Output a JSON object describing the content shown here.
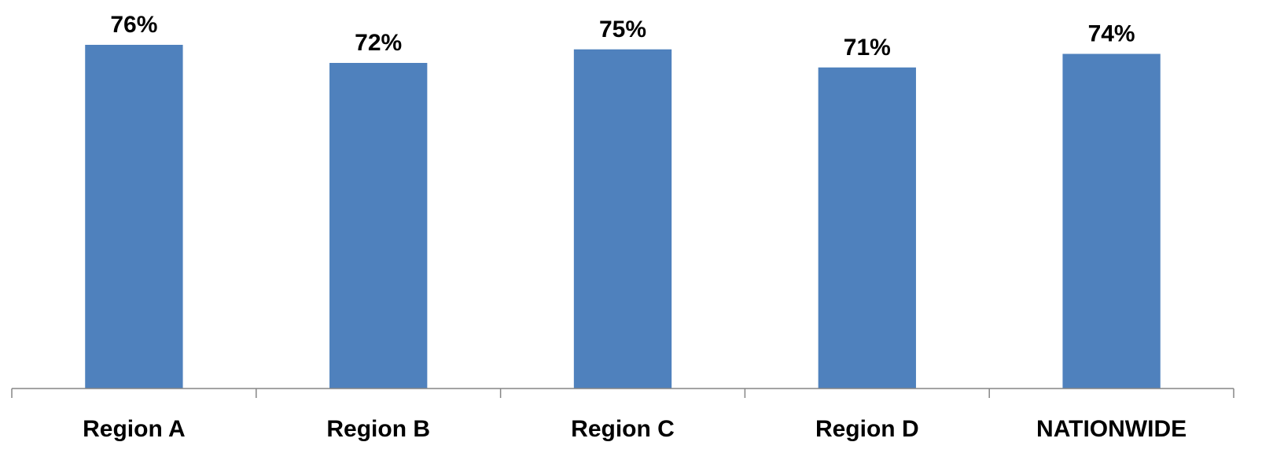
{
  "chart_data": {
    "type": "bar",
    "categories": [
      "Region A",
      "Region B",
      "Region C",
      "Region D",
      "NATIONWIDE"
    ],
    "values": [
      76,
      72,
      75,
      71,
      74
    ],
    "data_labels": [
      "76%",
      "72%",
      "75%",
      "71%",
      "74%"
    ],
    "title": "",
    "xlabel": "",
    "ylabel": "",
    "ylim": [
      0,
      80
    ],
    "grid": false,
    "legend": "none",
    "bar_color": "#4F81BD",
    "axis_color": "#868686"
  }
}
